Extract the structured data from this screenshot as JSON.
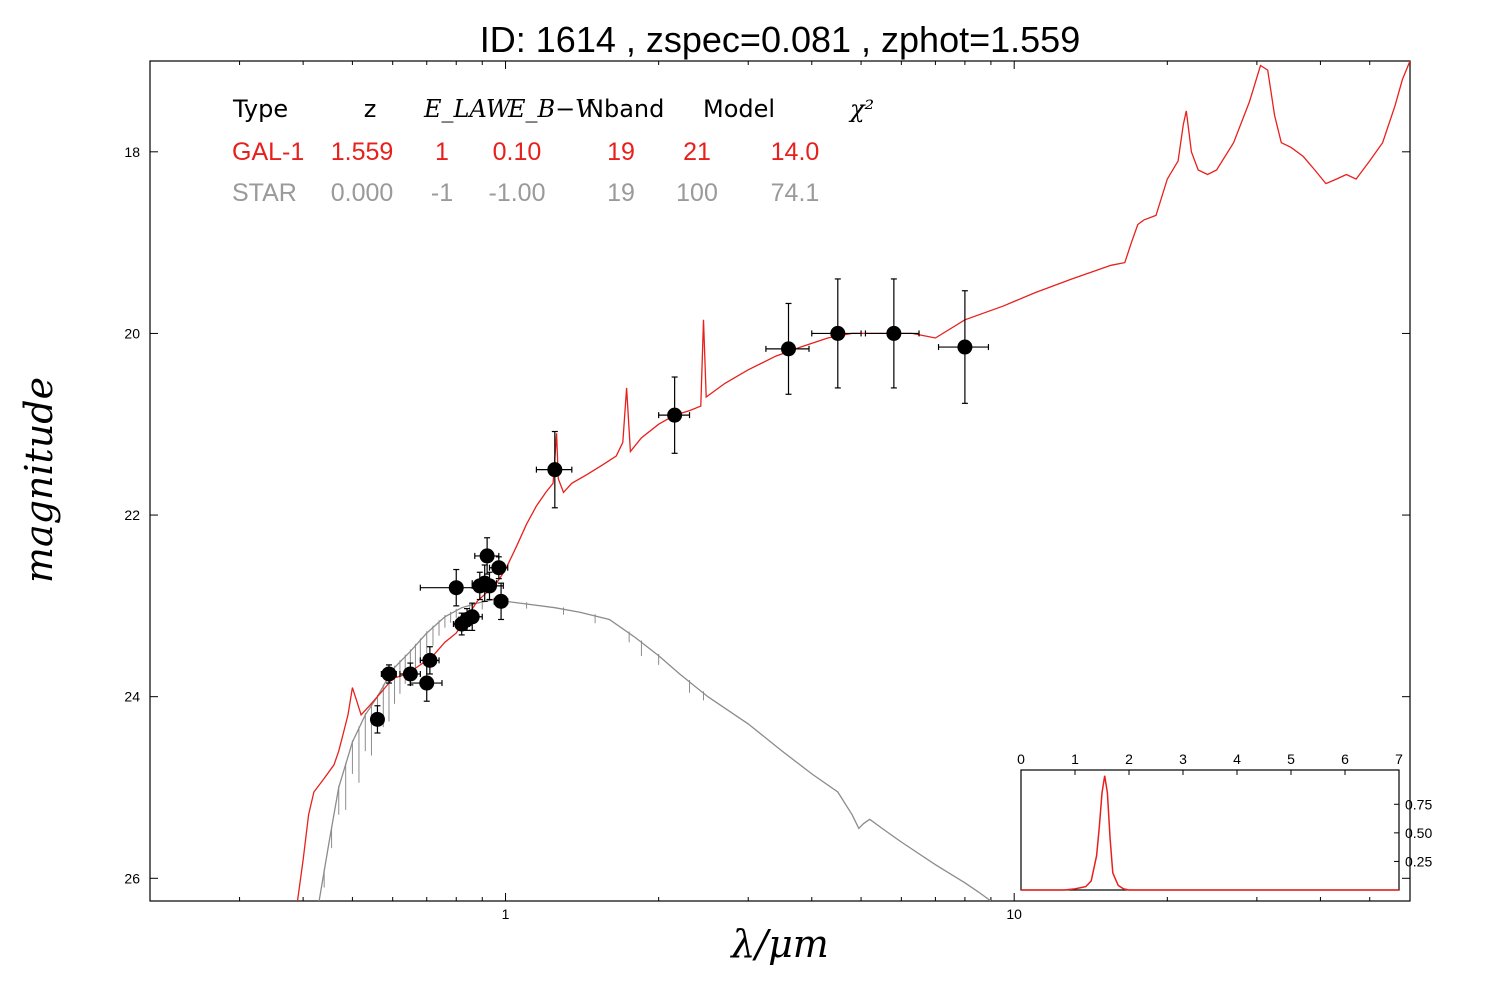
{
  "chart_data": {
    "title": "ID:  1614  , zspec=0.081 , zphot=1.559",
    "xlabel": "λ/μm",
    "ylabel": "magnitude",
    "x_scale": "log",
    "xlim": [
      0.2,
      60
    ],
    "ylim": [
      26.25,
      17.0
    ],
    "y_inverted": true,
    "x_ticks": [
      {
        "value": 1,
        "label": "1"
      },
      {
        "value": 10,
        "label": "10"
      }
    ],
    "y_ticks": [
      {
        "value": 18,
        "label": "18"
      },
      {
        "value": 20,
        "label": "20"
      },
      {
        "value": 22,
        "label": "22"
      },
      {
        "value": 24,
        "label": "24"
      },
      {
        "value": 26,
        "label": "26"
      }
    ],
    "table": {
      "headers": [
        "Type",
        "z",
        "E_LAW",
        "E_B−V",
        "Nband",
        "Model",
        "χ²"
      ],
      "rows": [
        {
          "color": "#e8201c",
          "cells": [
            "GAL-1",
            "1.559",
            "1",
            "0.10",
            "19",
            "21",
            "14.0"
          ]
        },
        {
          "color": "#9a9a9a",
          "cells": [
            "STAR",
            "0.000",
            "-1",
            "-1.00",
            "19",
            "100",
            "74.1"
          ]
        }
      ]
    },
    "photometry": [
      {
        "x": 0.56,
        "y": 24.25,
        "xerr": [
          0.005,
          0.005
        ],
        "yerr": 0.15
      },
      {
        "x": 0.59,
        "y": 23.75,
        "xerr": [
          0.02,
          0.02
        ],
        "yerr": 0.1
      },
      {
        "x": 0.65,
        "y": 23.75,
        "xerr": [
          0.03,
          0.03
        ],
        "yerr": 0.12
      },
      {
        "x": 0.71,
        "y": 23.6,
        "xerr": [
          0.03,
          0.03
        ],
        "yerr": 0.15
      },
      {
        "x": 0.7,
        "y": 23.85,
        "xerr": [
          0.05,
          0.05
        ],
        "yerr": 0.2
      },
      {
        "x": 0.8,
        "y": 22.8,
        "xerr": [
          0.12,
          0.12
        ],
        "yerr": 0.2
      },
      {
        "x": 0.82,
        "y": 23.2,
        "xerr": [
          0.03,
          0.03
        ],
        "yerr": 0.12
      },
      {
        "x": 0.84,
        "y": 23.15,
        "xerr": [
          0.03,
          0.03
        ],
        "yerr": 0.12
      },
      {
        "x": 0.86,
        "y": 23.12,
        "xerr": [
          0.04,
          0.04
        ],
        "yerr": 0.15
      },
      {
        "x": 0.89,
        "y": 22.78,
        "xerr": [
          0.03,
          0.03
        ],
        "yerr": 0.15
      },
      {
        "x": 0.91,
        "y": 22.75,
        "xerr": [
          0.05,
          0.05
        ],
        "yerr": 0.2
      },
      {
        "x": 0.92,
        "y": 22.45,
        "xerr": [
          0.05,
          0.05
        ],
        "yerr": 0.2
      },
      {
        "x": 0.93,
        "y": 22.78,
        "xerr": [
          0.06,
          0.06
        ],
        "yerr": 0.15
      },
      {
        "x": 0.97,
        "y": 22.58,
        "xerr": [
          0.04,
          0.04
        ],
        "yerr": 0.12
      },
      {
        "x": 0.98,
        "y": 22.95,
        "xerr": [
          0.03,
          0.03
        ],
        "yerr": 0.2
      },
      {
        "x": 1.25,
        "y": 21.5,
        "xerr": [
          0.1,
          0.1
        ],
        "yerr": 0.42
      },
      {
        "x": 2.15,
        "y": 20.9,
        "xerr": [
          0.15,
          0.15
        ],
        "yerr": 0.42
      },
      {
        "x": 3.6,
        "y": 20.17,
        "xerr": [
          0.35,
          0.35
        ],
        "yerr": 0.5
      },
      {
        "x": 4.5,
        "y": 20.0,
        "xerr": [
          0.5,
          0.5
        ],
        "yerr": 0.6
      },
      {
        "x": 5.8,
        "y": 20.0,
        "xerr": [
          0.7,
          0.7
        ],
        "yerr": 0.6
      },
      {
        "x": 8.0,
        "y": 20.15,
        "xerr": [
          0.9,
          0.9
        ],
        "yerr": 0.62
      }
    ],
    "series": [
      {
        "name": "GAL-1",
        "color": "#e8201c",
        "points": [
          [
            0.39,
            26.25
          ],
          [
            0.4,
            25.8
          ],
          [
            0.41,
            25.3
          ],
          [
            0.42,
            25.05
          ],
          [
            0.44,
            24.9
          ],
          [
            0.46,
            24.75
          ],
          [
            0.47,
            24.6
          ],
          [
            0.48,
            24.4
          ],
          [
            0.49,
            24.2
          ],
          [
            0.5,
            23.9
          ],
          [
            0.51,
            24.05
          ],
          [
            0.52,
            24.2
          ],
          [
            0.54,
            24.1
          ],
          [
            0.57,
            23.95
          ],
          [
            0.6,
            23.8
          ],
          [
            0.64,
            23.75
          ],
          [
            0.68,
            23.65
          ],
          [
            0.72,
            23.55
          ],
          [
            0.76,
            23.4
          ],
          [
            0.8,
            23.3
          ],
          [
            0.84,
            23.12
          ],
          [
            0.88,
            22.95
          ],
          [
            0.92,
            22.85
          ],
          [
            0.96,
            22.75
          ],
          [
            1.0,
            22.6
          ],
          [
            1.05,
            22.35
          ],
          [
            1.1,
            22.1
          ],
          [
            1.15,
            21.9
          ],
          [
            1.2,
            21.75
          ],
          [
            1.24,
            21.65
          ],
          [
            1.26,
            21.1
          ],
          [
            1.27,
            21.6
          ],
          [
            1.3,
            21.75
          ],
          [
            1.35,
            21.65
          ],
          [
            1.45,
            21.55
          ],
          [
            1.55,
            21.45
          ],
          [
            1.65,
            21.35
          ],
          [
            1.7,
            21.2
          ],
          [
            1.73,
            20.6
          ],
          [
            1.76,
            21.3
          ],
          [
            1.85,
            21.15
          ],
          [
            2.0,
            21.0
          ],
          [
            2.15,
            20.9
          ],
          [
            2.3,
            20.85
          ],
          [
            2.42,
            20.8
          ],
          [
            2.45,
            19.85
          ],
          [
            2.48,
            20.7
          ],
          [
            2.7,
            20.55
          ],
          [
            3.0,
            20.4
          ],
          [
            3.4,
            20.25
          ],
          [
            3.8,
            20.15
          ],
          [
            4.3,
            20.05
          ],
          [
            4.8,
            20.0
          ],
          [
            5.5,
            20.0
          ],
          [
            6.3,
            20.0
          ],
          [
            7.0,
            20.05
          ],
          [
            8.0,
            19.85
          ],
          [
            9.5,
            19.7
          ],
          [
            11.0,
            19.55
          ],
          [
            13.0,
            19.4
          ],
          [
            15.5,
            19.25
          ],
          [
            16.5,
            19.22
          ],
          [
            17.0,
            19.0
          ],
          [
            17.5,
            18.8
          ],
          [
            18.0,
            18.75
          ],
          [
            19.0,
            18.7
          ],
          [
            20.0,
            18.3
          ],
          [
            21.0,
            18.1
          ],
          [
            21.5,
            17.7
          ],
          [
            21.8,
            17.55
          ],
          [
            22.3,
            18.0
          ],
          [
            23.0,
            18.2
          ],
          [
            24.0,
            18.25
          ],
          [
            25.0,
            18.2
          ],
          [
            27.0,
            17.9
          ],
          [
            29.0,
            17.45
          ],
          [
            30.5,
            17.05
          ],
          [
            31.5,
            17.1
          ],
          [
            32.5,
            17.6
          ],
          [
            33.5,
            17.9
          ],
          [
            35.0,
            17.95
          ],
          [
            37.0,
            18.05
          ],
          [
            39.0,
            18.2
          ],
          [
            41.0,
            18.35
          ],
          [
            43.0,
            18.3
          ],
          [
            45.0,
            18.25
          ],
          [
            47.0,
            18.3
          ],
          [
            50.0,
            18.1
          ],
          [
            53.0,
            17.9
          ],
          [
            56.0,
            17.5
          ],
          [
            58.0,
            17.2
          ],
          [
            60.0,
            17.0
          ]
        ]
      },
      {
        "name": "STAR",
        "color": "#8c8c8c",
        "points": [
          [
            0.43,
            26.25
          ],
          [
            0.45,
            25.6
          ],
          [
            0.47,
            25.0
          ],
          [
            0.5,
            24.5
          ],
          [
            0.53,
            24.2
          ],
          [
            0.56,
            24.0
          ],
          [
            0.6,
            23.7
          ],
          [
            0.65,
            23.5
          ],
          [
            0.7,
            23.3
          ],
          [
            0.76,
            23.12
          ],
          [
            0.82,
            23.02
          ],
          [
            0.88,
            22.97
          ],
          [
            0.95,
            22.93
          ],
          [
            1.0,
            22.95
          ],
          [
            1.1,
            22.98
          ],
          [
            1.25,
            23.02
          ],
          [
            1.4,
            23.07
          ],
          [
            1.6,
            23.15
          ],
          [
            1.8,
            23.35
          ],
          [
            2.0,
            23.55
          ],
          [
            2.2,
            23.75
          ],
          [
            2.5,
            24.0
          ],
          [
            3.0,
            24.3
          ],
          [
            3.5,
            24.6
          ],
          [
            4.0,
            24.85
          ],
          [
            4.5,
            25.05
          ],
          [
            4.8,
            25.3
          ],
          [
            4.95,
            25.45
          ],
          [
            5.05,
            25.4
          ],
          [
            5.2,
            25.35
          ],
          [
            5.5,
            25.45
          ],
          [
            6.0,
            25.6
          ],
          [
            7.0,
            25.85
          ],
          [
            8.0,
            26.05
          ],
          [
            8.5,
            26.15
          ],
          [
            9.0,
            26.25
          ]
        ],
        "absorption_lines": [
          [
            0.44,
            0.18
          ],
          [
            0.455,
            0.22
          ],
          [
            0.47,
            0.3
          ],
          [
            0.485,
            0.5
          ],
          [
            0.5,
            0.35
          ],
          [
            0.515,
            0.6
          ],
          [
            0.53,
            0.4
          ],
          [
            0.545,
            0.55
          ],
          [
            0.56,
            0.3
          ],
          [
            0.575,
            0.45
          ],
          [
            0.59,
            0.5
          ],
          [
            0.605,
            0.4
          ],
          [
            0.62,
            0.35
          ],
          [
            0.635,
            0.3
          ],
          [
            0.65,
            0.28
          ],
          [
            0.665,
            0.32
          ],
          [
            0.68,
            0.25
          ],
          [
            0.7,
            0.22
          ],
          [
            0.72,
            0.2
          ],
          [
            0.74,
            0.15
          ],
          [
            0.76,
            0.12
          ],
          [
            0.78,
            0.1
          ],
          [
            0.8,
            0.08
          ],
          [
            0.85,
            0.1
          ],
          [
            0.9,
            0.08
          ],
          [
            0.95,
            0.06
          ],
          [
            1.1,
            0.05
          ],
          [
            1.3,
            0.06
          ],
          [
            1.5,
            0.08
          ],
          [
            1.75,
            0.1
          ],
          [
            1.85,
            0.15
          ],
          [
            2.0,
            0.1
          ],
          [
            2.3,
            0.12
          ],
          [
            2.45,
            0.08
          ]
        ]
      }
    ],
    "inset": {
      "type": "line",
      "xlim": [
        0,
        7
      ],
      "ylim": [
        0,
        1.05
      ],
      "x_ticks": [
        "0",
        "1",
        "2",
        "3",
        "4",
        "5",
        "6",
        "7"
      ],
      "y_ticks": [
        "0.25",
        "0.50",
        "0.75"
      ],
      "color": "#e8201c",
      "points": [
        [
          0,
          0
        ],
        [
          0.8,
          0
        ],
        [
          1.0,
          0.01
        ],
        [
          1.2,
          0.03
        ],
        [
          1.3,
          0.08
        ],
        [
          1.4,
          0.3
        ],
        [
          1.45,
          0.55
        ],
        [
          1.5,
          0.85
        ],
        [
          1.55,
          1.0
        ],
        [
          1.6,
          0.85
        ],
        [
          1.65,
          0.45
        ],
        [
          1.7,
          0.15
        ],
        [
          1.8,
          0.04
        ],
        [
          1.9,
          0.01
        ],
        [
          2.0,
          0
        ],
        [
          7.0,
          0
        ]
      ]
    }
  }
}
